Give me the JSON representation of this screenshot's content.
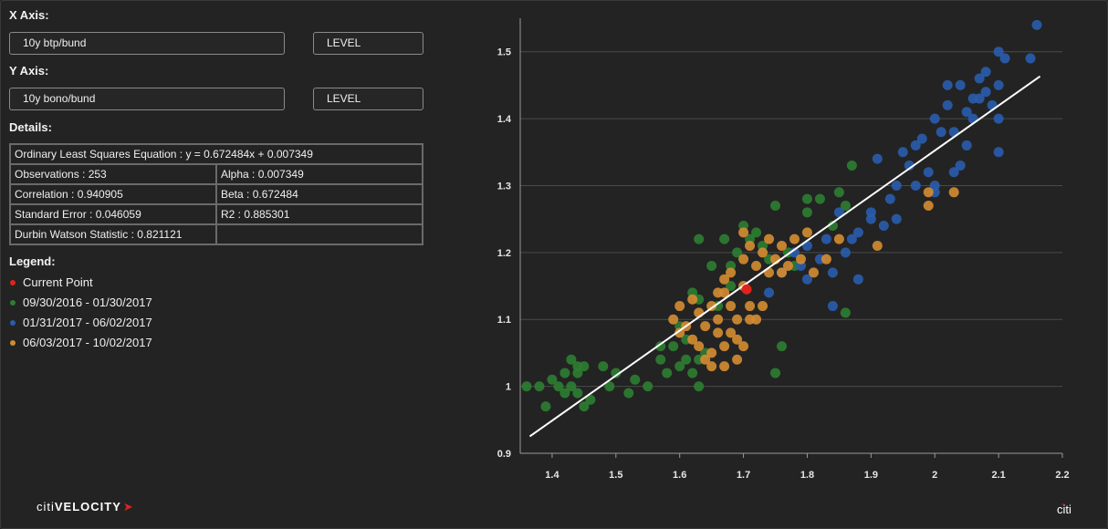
{
  "x_axis": {
    "label": "X Axis:",
    "series": "10y btp/bund",
    "mode": "LEVEL"
  },
  "y_axis": {
    "label": "Y Axis:",
    "series": "10y bono/bund",
    "mode": "LEVEL"
  },
  "details": {
    "label": "Details:",
    "equation": "Ordinary Least Squares Equation : y = 0.672484x + 0.007349",
    "observations": "Observations : 253",
    "alpha": "Alpha : 0.007349",
    "correlation": "Correlation : 0.940905",
    "beta": "Beta : 0.672484",
    "std_error": "Standard Error : 0.046059",
    "r2": "R2 : 0.885301",
    "durbin_watson": "Durbin Watson Statistic : 0.821121"
  },
  "legend": {
    "label": "Legend:",
    "items": [
      {
        "label": "Current Point",
        "color": "#e0231b"
      },
      {
        "label": "09/30/2016 - 01/30/2017",
        "color": "#2e7d32"
      },
      {
        "label": "01/31/2017 - 06/02/2017",
        "color": "#2a5caa"
      },
      {
        "label": "06/03/2017 - 10/02/2017",
        "color": "#d18b32"
      }
    ]
  },
  "brand": {
    "part1": "citi",
    "part2": "VELOCITY",
    "logo": "citi"
  },
  "chart_data": {
    "type": "scatter",
    "xlim": [
      1.35,
      2.2
    ],
    "ylim": [
      0.9,
      1.55
    ],
    "x_ticks": [
      "1.4",
      "1.5",
      "1.6",
      "1.7",
      "1.8",
      "1.9",
      "2",
      "2.1",
      "2.2"
    ],
    "y_ticks": [
      "0.9",
      "1",
      "1.1",
      "1.2",
      "1.3",
      "1.4",
      "1.5"
    ],
    "grid": true,
    "regression": {
      "slope": 0.672484,
      "intercept": 0.007349,
      "x_range": [
        1.365,
        2.165
      ]
    },
    "series": [
      {
        "name": "09/30/2016 - 01/30/2017",
        "color": "#2e7d32",
        "points": [
          [
            1.36,
            1.0
          ],
          [
            1.38,
            1.0
          ],
          [
            1.39,
            0.97
          ],
          [
            1.4,
            1.01
          ],
          [
            1.41,
            1.0
          ],
          [
            1.42,
            1.02
          ],
          [
            1.42,
            0.99
          ],
          [
            1.43,
            1.0
          ],
          [
            1.43,
            1.04
          ],
          [
            1.44,
            1.03
          ],
          [
            1.44,
            0.99
          ],
          [
            1.45,
            1.03
          ],
          [
            1.45,
            0.97
          ],
          [
            1.46,
            0.98
          ],
          [
            1.48,
            1.03
          ],
          [
            1.49,
            1.0
          ],
          [
            1.5,
            1.02
          ],
          [
            1.52,
            0.99
          ],
          [
            1.53,
            1.01
          ],
          [
            1.55,
            1.0
          ],
          [
            1.57,
            1.06
          ],
          [
            1.58,
            1.02
          ],
          [
            1.59,
            1.06
          ],
          [
            1.6,
            1.03
          ],
          [
            1.61,
            1.04
          ],
          [
            1.62,
            1.02
          ],
          [
            1.63,
            1.0
          ],
          [
            1.63,
            1.04
          ],
          [
            1.64,
            1.05
          ],
          [
            1.62,
            1.14
          ],
          [
            1.63,
            1.13
          ],
          [
            1.65,
            1.18
          ],
          [
            1.66,
            1.12
          ],
          [
            1.67,
            1.22
          ],
          [
            1.68,
            1.18
          ],
          [
            1.69,
            1.2
          ],
          [
            1.6,
            1.09
          ],
          [
            1.61,
            1.07
          ],
          [
            1.7,
            1.24
          ],
          [
            1.71,
            1.22
          ],
          [
            1.73,
            1.21
          ],
          [
            1.74,
            1.19
          ],
          [
            1.75,
            1.27
          ],
          [
            1.76,
            1.06
          ],
          [
            1.75,
            1.02
          ],
          [
            1.78,
            1.18
          ],
          [
            1.8,
            1.26
          ],
          [
            1.82,
            1.28
          ],
          [
            1.84,
            1.24
          ],
          [
            1.85,
            1.29
          ],
          [
            1.86,
            1.27
          ],
          [
            1.87,
            1.33
          ],
          [
            1.86,
            1.11
          ],
          [
            1.63,
            1.22
          ],
          [
            1.57,
            1.04
          ],
          [
            1.68,
            1.15
          ],
          [
            1.72,
            1.23
          ],
          [
            1.77,
            1.2
          ],
          [
            1.8,
            1.28
          ],
          [
            1.44,
            1.02
          ]
        ]
      },
      {
        "name": "01/31/2017 - 06/02/2017",
        "color": "#2a5caa",
        "points": [
          [
            1.74,
            1.14
          ],
          [
            1.76,
            1.17
          ],
          [
            1.78,
            1.2
          ],
          [
            1.79,
            1.18
          ],
          [
            1.8,
            1.16
          ],
          [
            1.82,
            1.19
          ],
          [
            1.83,
            1.22
          ],
          [
            1.84,
            1.17
          ],
          [
            1.85,
            1.26
          ],
          [
            1.86,
            1.2
          ],
          [
            1.87,
            1.22
          ],
          [
            1.88,
            1.23
          ],
          [
            1.84,
            1.12
          ],
          [
            1.9,
            1.25
          ],
          [
            1.91,
            1.34
          ],
          [
            1.93,
            1.28
          ],
          [
            1.94,
            1.3
          ],
          [
            1.95,
            1.35
          ],
          [
            1.96,
            1.33
          ],
          [
            1.97,
            1.3
          ],
          [
            1.98,
            1.37
          ],
          [
            1.99,
            1.32
          ],
          [
            2.0,
            1.4
          ],
          [
            2.01,
            1.38
          ],
          [
            2.02,
            1.42
          ],
          [
            2.03,
            1.38
          ],
          [
            2.04,
            1.45
          ],
          [
            2.05,
            1.41
          ],
          [
            2.06,
            1.43
          ],
          [
            2.07,
            1.46
          ],
          [
            2.08,
            1.44
          ],
          [
            2.09,
            1.42
          ],
          [
            2.1,
            1.45
          ],
          [
            2.1,
            1.5
          ],
          [
            2.11,
            1.49
          ],
          [
            2.15,
            1.49
          ],
          [
            2.16,
            1.54
          ],
          [
            2.1,
            1.35
          ],
          [
            2.1,
            1.4
          ],
          [
            2.03,
            1.32
          ],
          [
            2.05,
            1.36
          ],
          [
            2.0,
            1.29
          ],
          [
            2.08,
            1.47
          ],
          [
            2.02,
            1.45
          ],
          [
            1.97,
            1.36
          ],
          [
            1.9,
            1.26
          ],
          [
            1.94,
            1.25
          ],
          [
            2.04,
            1.33
          ],
          [
            2.06,
            1.4
          ],
          [
            2.0,
            1.3
          ],
          [
            1.8,
            1.21
          ],
          [
            1.88,
            1.16
          ],
          [
            1.92,
            1.24
          ],
          [
            2.07,
            1.43
          ]
        ]
      },
      {
        "name": "06/03/2017 - 10/02/2017",
        "color": "#d18b32",
        "points": [
          [
            1.59,
            1.1
          ],
          [
            1.6,
            1.08
          ],
          [
            1.61,
            1.09
          ],
          [
            1.62,
            1.07
          ],
          [
            1.63,
            1.06
          ],
          [
            1.63,
            1.11
          ],
          [
            1.64,
            1.09
          ],
          [
            1.65,
            1.12
          ],
          [
            1.65,
            1.05
          ],
          [
            1.66,
            1.1
          ],
          [
            1.66,
            1.08
          ],
          [
            1.67,
            1.14
          ],
          [
            1.67,
            1.06
          ],
          [
            1.67,
            1.03
          ],
          [
            1.68,
            1.12
          ],
          [
            1.68,
            1.17
          ],
          [
            1.69,
            1.1
          ],
          [
            1.69,
            1.07
          ],
          [
            1.7,
            1.15
          ],
          [
            1.7,
            1.19
          ],
          [
            1.71,
            1.12
          ],
          [
            1.71,
            1.21
          ],
          [
            1.72,
            1.18
          ],
          [
            1.72,
            1.1
          ],
          [
            1.73,
            1.2
          ],
          [
            1.74,
            1.17
          ],
          [
            1.74,
            1.22
          ],
          [
            1.75,
            1.19
          ],
          [
            1.76,
            1.21
          ],
          [
            1.77,
            1.18
          ],
          [
            1.78,
            1.22
          ],
          [
            1.79,
            1.19
          ],
          [
            1.8,
            1.23
          ],
          [
            1.81,
            1.17
          ],
          [
            1.83,
            1.19
          ],
          [
            1.62,
            1.13
          ],
          [
            1.64,
            1.04
          ],
          [
            1.65,
            1.03
          ],
          [
            1.69,
            1.04
          ],
          [
            1.7,
            1.06
          ],
          [
            1.71,
            1.1
          ],
          [
            1.6,
            1.12
          ],
          [
            1.67,
            1.16
          ],
          [
            1.73,
            1.12
          ],
          [
            1.99,
            1.29
          ],
          [
            1.99,
            1.27
          ],
          [
            2.03,
            1.29
          ],
          [
            1.91,
            1.21
          ],
          [
            1.7,
            1.23
          ],
          [
            1.76,
            1.17
          ],
          [
            1.85,
            1.22
          ],
          [
            1.66,
            1.14
          ],
          [
            1.68,
            1.08
          ]
        ]
      }
    ],
    "current_point": {
      "label": "Current Point",
      "color": "#e0231b",
      "x": 1.705,
      "y": 1.145
    }
  }
}
